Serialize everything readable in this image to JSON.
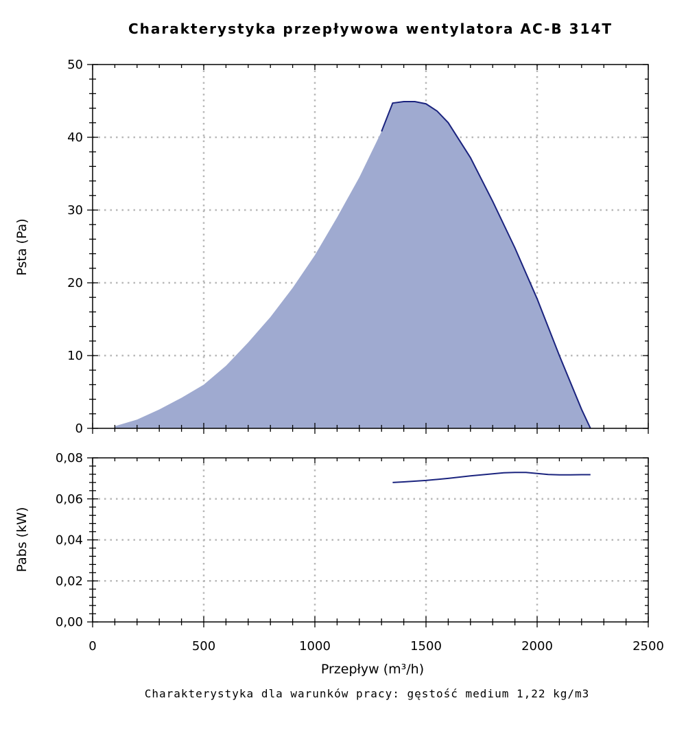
{
  "chart_data": [
    {
      "type": "area",
      "title": "Charakterystyka przepływowa wentylatora AC-B 314T",
      "ylabel": "Psta (Pa)",
      "xlim": [
        0,
        2500
      ],
      "ylim": [
        0,
        50
      ],
      "x_ticks": [
        "0",
        "500",
        "1000",
        "1500",
        "2000",
        "2500"
      ],
      "y_ticks": [
        "0",
        "10",
        "20",
        "30",
        "40",
        "50"
      ],
      "grid": true,
      "series": [
        {
          "color": "#1a237e",
          "fill": "#9faad0",
          "x": [
            100,
            200,
            300,
            400,
            500,
            600,
            700,
            800,
            900,
            1000,
            1100,
            1200,
            1300,
            1350,
            1400,
            1450,
            1500,
            1550,
            1600,
            1700,
            1800,
            1900,
            2000,
            2100,
            2200,
            2240
          ],
          "y": [
            0.3,
            1.2,
            2.6,
            4.2,
            6.0,
            8.6,
            11.8,
            15.3,
            19.3,
            23.8,
            29.0,
            34.5,
            40.8,
            44.7,
            44.9,
            44.9,
            44.6,
            43.6,
            42.0,
            37.2,
            31.2,
            24.8,
            17.8,
            10.0,
            2.6,
            0
          ]
        }
      ]
    },
    {
      "type": "line",
      "xlabel": "Przepływ (m³/h)",
      "ylabel": "Pabs (kW)",
      "xlim": [
        0,
        2500
      ],
      "ylim": [
        0,
        0.08
      ],
      "x_ticks": [
        "0",
        "500",
        "1000",
        "1500",
        "2000",
        "2500"
      ],
      "y_ticks": [
        "0,00",
        "0,02",
        "0,04",
        "0,06",
        "0,08"
      ],
      "grid": true,
      "series": [
        {
          "color": "#1a237e",
          "x": [
            1350,
            1400,
            1500,
            1600,
            1700,
            1800,
            1850,
            1900,
            1950,
            2000,
            2050,
            2100,
            2150,
            2200,
            2240
          ],
          "y": [
            0.068,
            0.0683,
            0.069,
            0.07,
            0.0712,
            0.0722,
            0.0727,
            0.0729,
            0.0729,
            0.0724,
            0.0719,
            0.0717,
            0.0717,
            0.0718,
            0.0718
          ]
        }
      ]
    }
  ],
  "footnote": "Charakterystyka dla warunków pracy: gęstość medium 1,22 kg/m3"
}
